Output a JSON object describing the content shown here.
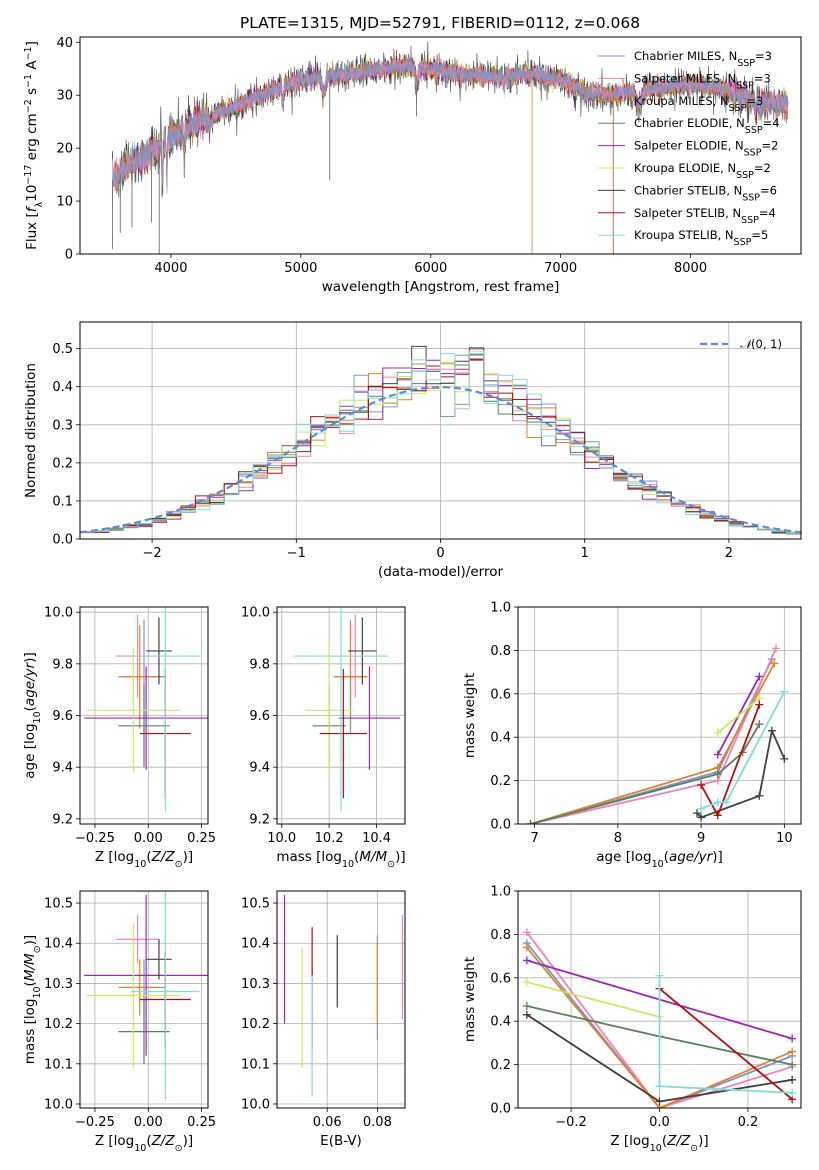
{
  "figure": {
    "title": "PLATE=1315, MJD=52791, FIBERID=0112, z=0.068"
  },
  "colors": {
    "Chabrier MILES": "#7b96c8",
    "Salpeter MILES": "#f080b8",
    "Kroupa MILES": "#e08030",
    "Chabrier ELODIE": "#5a8060",
    "Salpeter ELODIE": "#9a28b0",
    "Kroupa ELODIE": "#d0e860",
    "Chabrier STELIB": "#404040",
    "Salpeter STELIB": "#b01010",
    "Kroupa STELIB": "#80dcdc",
    "gauss": "#5b8ad8"
  },
  "chart_data": [
    {
      "id": "spectrum",
      "type": "line",
      "title": "PLATE=1315, MJD=52791, FIBERID=0112, z=0.068",
      "xlabel": "wavelength [Angstrom, rest frame]",
      "ylabel": "Flux [f_λ 10^-17 erg cm^-2 s^-1 A^-1]",
      "xlim": [
        3300,
        8850
      ],
      "ylim": [
        0,
        41
      ],
      "xticks": [
        4000,
        5000,
        6000,
        7000,
        8000
      ],
      "yticks": [
        0,
        10,
        20,
        30,
        40
      ],
      "legend_position": "upper right",
      "legend": [
        "Chabrier MILES, N_SSP=3",
        "Salpeter MILES, N_SSP=3",
        "Kroupa MILES, N_SSP=3",
        "Chabrier ELODIE, N_SSP=4",
        "Salpeter ELODIE, N_SSP=2",
        "Kroupa ELODIE, N_SSP=2",
        "Chabrier STELIB, N_SSP=6",
        "Salpeter STELIB, N_SSP=4",
        "Kroupa STELIB, N_SSP=5"
      ],
      "continuum": [
        [
          3550,
          14
        ],
        [
          3700,
          17
        ],
        [
          3900,
          20
        ],
        [
          4000,
          22
        ],
        [
          4200,
          25
        ],
        [
          4500,
          28
        ],
        [
          4800,
          31
        ],
        [
          5000,
          33
        ],
        [
          5200,
          33.5
        ],
        [
          5500,
          34.5
        ],
        [
          5800,
          35.5
        ],
        [
          6000,
          35
        ],
        [
          6200,
          34
        ],
        [
          6500,
          33.5
        ],
        [
          6800,
          34
        ],
        [
          7000,
          33
        ],
        [
          7200,
          30.5
        ],
        [
          7400,
          30
        ],
        [
          7600,
          31
        ],
        [
          8000,
          32
        ],
        [
          8200,
          31.5
        ],
        [
          8500,
          29
        ],
        [
          8700,
          28.5
        ]
      ],
      "absorption": [
        [
          3934,
          4,
          8
        ],
        [
          3968,
          4,
          6
        ],
        [
          4102,
          4,
          3
        ],
        [
          4300,
          10,
          2
        ],
        [
          4861,
          5,
          3
        ],
        [
          5175,
          12,
          3
        ],
        [
          5890,
          8,
          4
        ],
        [
          6563,
          5,
          2
        ],
        [
          7600,
          20,
          3
        ],
        [
          8500,
          5,
          2
        ],
        [
          8540,
          5,
          2
        ],
        [
          8660,
          5,
          2
        ]
      ],
      "spikes": [
        [
          3550,
          1
        ],
        [
          3610,
          4
        ],
        [
          3700,
          5
        ],
        [
          3850,
          6
        ],
        [
          3910,
          0
        ],
        [
          5222,
          14
        ],
        [
          5890,
          26
        ],
        [
          6780,
          0
        ],
        [
          7405,
          0
        ]
      ]
    },
    {
      "id": "residuals",
      "type": "histogram",
      "xlabel": "(data-model)/error",
      "ylabel": "Normed distribution",
      "xlim": [
        -2.5,
        2.5
      ],
      "ylim": [
        0,
        0.57
      ],
      "xticks": [
        -2,
        -1,
        0,
        1,
        2
      ],
      "yticks": [
        0.0,
        0.1,
        0.2,
        0.3,
        0.4,
        0.5
      ],
      "legend": [
        "N(0,1)"
      ],
      "legend_position": "upper right",
      "bin_width": 0.1
    },
    {
      "id": "age_vs_Z",
      "type": "errorbar",
      "xlabel": "Z [log10(Z/Z☉)]",
      "ylabel": "age [log10(age/yr)]",
      "xlim": [
        -0.32,
        0.28
      ],
      "ylim": [
        9.18,
        10.02
      ],
      "xticks": [
        -0.25,
        0.0,
        0.25
      ],
      "yticks": [
        9.2,
        9.4,
        9.6,
        9.8,
        10.0
      ],
      "points": [
        {
          "model": "Chabrier MILES",
          "x": -0.02,
          "xerr": 0.1,
          "y": 9.75,
          "yerr": 0.22
        },
        {
          "model": "Salpeter MILES",
          "x": -0.05,
          "xerr": 0.1,
          "y": 9.83,
          "yerr": 0.16
        },
        {
          "model": "Kroupa MILES",
          "x": -0.04,
          "xerr": 0.1,
          "y": 9.75,
          "yerr": 0.2
        },
        {
          "model": "Chabrier ELODIE",
          "x": -0.02,
          "xerr": 0.12,
          "y": 9.56,
          "yerr": 0.16
        },
        {
          "model": "Salpeter ELODIE",
          "x": -0.01,
          "xerr": 0.29,
          "y": 9.59,
          "yerr": 0.2
        },
        {
          "model": "Kroupa ELODIE",
          "x": -0.07,
          "xerr": 0.22,
          "y": 9.62,
          "yerr": 0.24
        },
        {
          "model": "Chabrier STELIB",
          "x": 0.05,
          "xerr": 0.06,
          "y": 9.85,
          "yerr": 0.13
        },
        {
          "model": "Salpeter STELIB",
          "x": 0.08,
          "xerr": 0.12,
          "y": 9.53,
          "yerr": 0.25
        },
        {
          "model": "Kroupa STELIB",
          "x": 0.08,
          "xerr": 0.16,
          "y": 9.83,
          "yerr": 0.6
        }
      ]
    },
    {
      "id": "age_vs_mass",
      "type": "errorbar",
      "xlabel": "mass [log10(M/M☉)]",
      "ylabel": "",
      "xlim": [
        9.98,
        10.52
      ],
      "ylim": [
        9.18,
        10.02
      ],
      "xticks": [
        10.0,
        10.2,
        10.4
      ],
      "yticks": [
        9.2,
        9.4,
        9.6,
        9.8,
        10.0
      ],
      "points": [
        {
          "model": "Chabrier MILES",
          "x": 10.29,
          "xerr": 0.07,
          "y": 9.75,
          "yerr": 0.22
        },
        {
          "model": "Salpeter MILES",
          "x": 10.31,
          "xerr": 0.11,
          "y": 9.83,
          "yerr": 0.16
        },
        {
          "model": "Kroupa MILES",
          "x": 10.29,
          "xerr": 0.07,
          "y": 9.75,
          "yerr": 0.2
        },
        {
          "model": "Chabrier ELODIE",
          "x": 10.2,
          "xerr": 0.07,
          "y": 9.56,
          "yerr": 0.16
        },
        {
          "model": "Salpeter ELODIE",
          "x": 10.37,
          "xerr": 0.13,
          "y": 9.59,
          "yerr": 0.2
        },
        {
          "model": "Kroupa ELODIE",
          "x": 10.2,
          "xerr": 0.1,
          "y": 9.62,
          "yerr": 0.24
        },
        {
          "model": "Chabrier STELIB",
          "x": 10.34,
          "xerr": 0.06,
          "y": 9.85,
          "yerr": 0.13
        },
        {
          "model": "Salpeter STELIB",
          "x": 10.26,
          "xerr": 0.1,
          "y": 9.53,
          "yerr": 0.25
        },
        {
          "model": "Kroupa STELIB",
          "x": 10.25,
          "xerr": 0.2,
          "y": 9.83,
          "yerr": 0.6
        }
      ]
    },
    {
      "id": "weight_vs_age",
      "type": "line",
      "xlabel": "age [log10(age/yr)]",
      "ylabel": "mass weight",
      "xlim": [
        6.8,
        10.2
      ],
      "ylim": [
        0.0,
        1.0
      ],
      "xticks": [
        7,
        8,
        9,
        10
      ],
      "yticks": [
        0.0,
        0.2,
        0.4,
        0.6,
        0.8,
        1.0
      ],
      "series": [
        {
          "model": "Chabrier MILES",
          "x": [
            6.95,
            9.2,
            9.85
          ],
          "y": [
            0.0,
            0.24,
            0.76
          ]
        },
        {
          "model": "Salpeter MILES",
          "x": [
            6.95,
            9.2,
            9.9
          ],
          "y": [
            0.0,
            0.2,
            0.81
          ]
        },
        {
          "model": "Kroupa MILES",
          "x": [
            6.95,
            9.2,
            9.88
          ],
          "y": [
            0.0,
            0.26,
            0.74
          ]
        },
        {
          "model": "Chabrier ELODIE",
          "x": [
            6.95,
            9.2,
            9.5,
            9.7
          ],
          "y": [
            0.0,
            0.23,
            0.33,
            0.46
          ]
        },
        {
          "model": "Salpeter ELODIE",
          "x": [
            9.2,
            9.7
          ],
          "y": [
            0.32,
            0.68
          ]
        },
        {
          "model": "Kroupa ELODIE",
          "x": [
            9.2,
            9.7
          ],
          "y": [
            0.42,
            0.58
          ]
        },
        {
          "model": "Chabrier STELIB",
          "x": [
            8.95,
            9.0,
            9.7,
            9.85,
            10.0
          ],
          "y": [
            0.05,
            0.03,
            0.13,
            0.43,
            0.3
          ]
        },
        {
          "model": "Salpeter STELIB",
          "x": [
            9.0,
            9.2,
            9.7
          ],
          "y": [
            0.18,
            0.04,
            0.55
          ]
        },
        {
          "model": "Kroupa STELIB",
          "x": [
            9.0,
            9.2,
            9.3,
            10.0
          ],
          "y": [
            0.07,
            0.1,
            0.1,
            0.61
          ]
        }
      ]
    },
    {
      "id": "mass_vs_Z",
      "type": "errorbar",
      "xlabel": "Z [log10(Z/Z☉)]",
      "ylabel": "mass [log10(M/M☉)]",
      "xlim": [
        -0.32,
        0.28
      ],
      "ylim": [
        9.99,
        10.53
      ],
      "xticks": [
        -0.25,
        0.0,
        0.25
      ],
      "yticks": [
        10.0,
        10.1,
        10.2,
        10.3,
        10.4,
        10.5
      ],
      "points": [
        {
          "model": "Chabrier MILES",
          "x": -0.02,
          "xerr": 0.1,
          "y": 10.29,
          "yerr": 0.07
        },
        {
          "model": "Salpeter MILES",
          "x": -0.05,
          "xerr": 0.1,
          "y": 10.41,
          "yerr": 0.06
        },
        {
          "model": "Kroupa MILES",
          "x": -0.04,
          "xerr": 0.1,
          "y": 10.29,
          "yerr": 0.07
        },
        {
          "model": "Chabrier ELODIE",
          "x": -0.02,
          "xerr": 0.12,
          "y": 10.18,
          "yerr": 0.08
        },
        {
          "model": "Salpeter ELODIE",
          "x": -0.01,
          "xerr": 0.29,
          "y": 10.32,
          "yerr": 0.2
        },
        {
          "model": "Kroupa ELODIE",
          "x": -0.07,
          "xerr": 0.22,
          "y": 10.27,
          "yerr": 0.18
        },
        {
          "model": "Chabrier STELIB",
          "x": 0.05,
          "xerr": 0.06,
          "y": 10.36,
          "yerr": 0.05
        },
        {
          "model": "Salpeter STELIB",
          "x": 0.08,
          "xerr": 0.12,
          "y": 10.26,
          "yerr": 0.12
        },
        {
          "model": "Kroupa STELIB",
          "x": 0.08,
          "xerr": 0.16,
          "y": 10.28,
          "yerr": 0.27
        }
      ]
    },
    {
      "id": "mass_vs_ebv",
      "type": "errorbar",
      "xlabel": "E(B-V)",
      "ylabel": "",
      "xlim": [
        0.04,
        0.091
      ],
      "ylim": [
        9.99,
        10.53
      ],
      "xticks": [
        0.06,
        0.08
      ],
      "yticks": [
        10.0,
        10.1,
        10.2,
        10.3,
        10.4,
        10.5
      ],
      "points": [
        {
          "model": "Chabrier MILES",
          "x": 0.08,
          "xerr": 0,
          "y": 10.29,
          "yerr": 0.13
        },
        {
          "model": "Salpeter MILES",
          "x": 0.09,
          "xerr": 0,
          "y": 10.34,
          "yerr": 0.13
        },
        {
          "model": "Kroupa MILES",
          "x": 0.08,
          "xerr": 0,
          "y": 10.3,
          "yerr": 0.1
        },
        {
          "model": "Chabrier ELODIE",
          "x": 0.054,
          "xerr": 0,
          "y": 10.24,
          "yerr": 0.1
        },
        {
          "model": "Salpeter ELODIE",
          "x": 0.043,
          "xerr": 0,
          "y": 10.36,
          "yerr": 0.16
        },
        {
          "model": "Kroupa ELODIE",
          "x": 0.05,
          "xerr": 0,
          "y": 10.24,
          "yerr": 0.15
        },
        {
          "model": "Chabrier STELIB",
          "x": 0.064,
          "xerr": 0,
          "y": 10.33,
          "yerr": 0.09
        },
        {
          "model": "Salpeter STELIB",
          "x": 0.054,
          "xerr": 0,
          "y": 10.38,
          "yerr": 0.06
        },
        {
          "model": "Kroupa STELIB",
          "x": 0.054,
          "xerr": 0,
          "y": 10.17,
          "yerr": 0.15
        }
      ]
    },
    {
      "id": "weight_vs_Z",
      "type": "line",
      "xlabel": "Z [log10(Z/Z☉)]",
      "ylabel": "mass weight",
      "xlim": [
        -0.32,
        0.32
      ],
      "ylim": [
        0.0,
        1.0
      ],
      "xticks": [
        -0.2,
        0.0,
        0.2
      ],
      "yticks": [
        0.0,
        0.2,
        0.4,
        0.6,
        0.8,
        1.0
      ],
      "series": [
        {
          "model": "Chabrier MILES",
          "x": [
            -0.3,
            0.0,
            0.3
          ],
          "y": [
            0.76,
            0.0,
            0.24
          ]
        },
        {
          "model": "Salpeter MILES",
          "x": [
            -0.3,
            0.0,
            0.3
          ],
          "y": [
            0.81,
            0.0,
            0.19
          ]
        },
        {
          "model": "Kroupa MILES",
          "x": [
            -0.3,
            0.0,
            0.3
          ],
          "y": [
            0.74,
            0.0,
            0.26
          ]
        },
        {
          "model": "Chabrier ELODIE",
          "x": [
            -0.3,
            0.0,
            0.3
          ],
          "y": [
            0.47,
            0.33,
            0.2
          ]
        },
        {
          "model": "Salpeter ELODIE",
          "x": [
            -0.3,
            0.3
          ],
          "y": [
            0.68,
            0.32
          ]
        },
        {
          "model": "Kroupa ELODIE",
          "x": [
            -0.3,
            0.0
          ],
          "y": [
            0.58,
            0.42
          ]
        },
        {
          "model": "Chabrier STELIB",
          "x": [
            -0.3,
            0.0,
            0.3
          ],
          "y": [
            0.43,
            0.03,
            0.13
          ]
        },
        {
          "model": "Salpeter STELIB",
          "x": [
            0.0,
            0.3
          ],
          "y": [
            0.55,
            0.04
          ]
        },
        {
          "model": "Kroupa STELIB",
          "x": [
            0.0,
            0.0,
            0.3
          ],
          "y": [
            0.61,
            0.1,
            0.07
          ]
        }
      ]
    }
  ]
}
